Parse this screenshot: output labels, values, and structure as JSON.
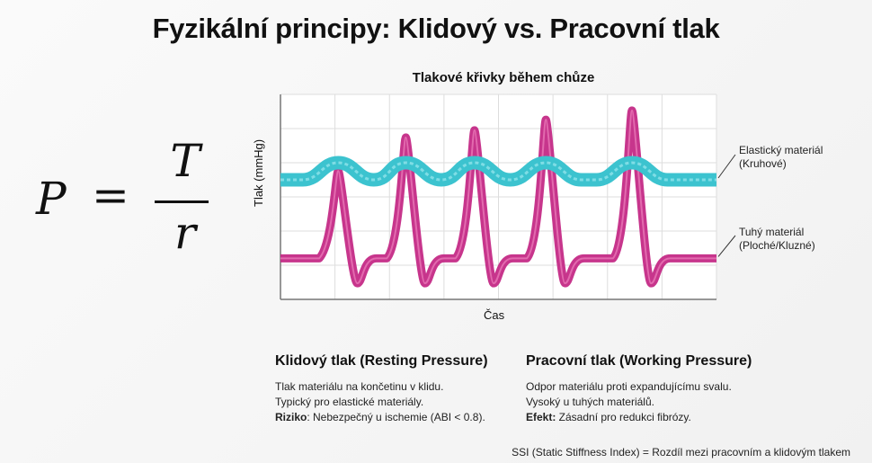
{
  "title": "Fyzikální principy: Klidový vs. Pracovní tlak",
  "formula": {
    "lhs": "P",
    "equals": "=",
    "numerator": "T",
    "denominator": "r"
  },
  "chart_data": {
    "type": "line",
    "title": "Tlakové křivky během chůze",
    "xlabel": "Čas",
    "ylabel": "Tlak (mmHg)",
    "xlim": [
      0,
      8
    ],
    "ylim": [
      0,
      6
    ],
    "grid": true,
    "series": [
      {
        "name": "Elastický materiál",
        "name2": "(Kruhové)",
        "color": "#3cc3cf",
        "baseline": 3.5,
        "peak_x": [
          1.06,
          2.3,
          3.56,
          4.87,
          6.45
        ],
        "peak_y": [
          4.0,
          4.0,
          4.0,
          4.0,
          4.0
        ]
      },
      {
        "name": "Tuhý materiál",
        "name2": "(Ploché/Kluzné)",
        "color": "#c42a86",
        "baseline": 1.2,
        "trough": 0.47,
        "peak_x": [
          1.06,
          2.3,
          3.56,
          4.87,
          6.45
        ],
        "peak_y": [
          3.76,
          4.74,
          4.95,
          5.26,
          5.53
        ]
      }
    ]
  },
  "resting": {
    "heading": "Klidový tlak (Resting Pressure)",
    "line1": "Tlak materiálu na končetinu v klidu.",
    "line2": "Typický pro elastické materiály.",
    "label3": "Riziko",
    "line3": ": Nebezpečný u ischemie (ABI < 0.8)."
  },
  "working": {
    "heading": "Pracovní tlak (Working Pressure)",
    "line1": "Odpor materiálu proti expandujícímu svalu.",
    "line2": "Vysoký u tuhých materiálů.",
    "label3": "Efekt:",
    "line3": " Zásadní pro redukci fibrózy."
  },
  "footer": "SSI (Static Stiffness Index) = Rozdíl mezi pracovním a klidovým tlakem"
}
